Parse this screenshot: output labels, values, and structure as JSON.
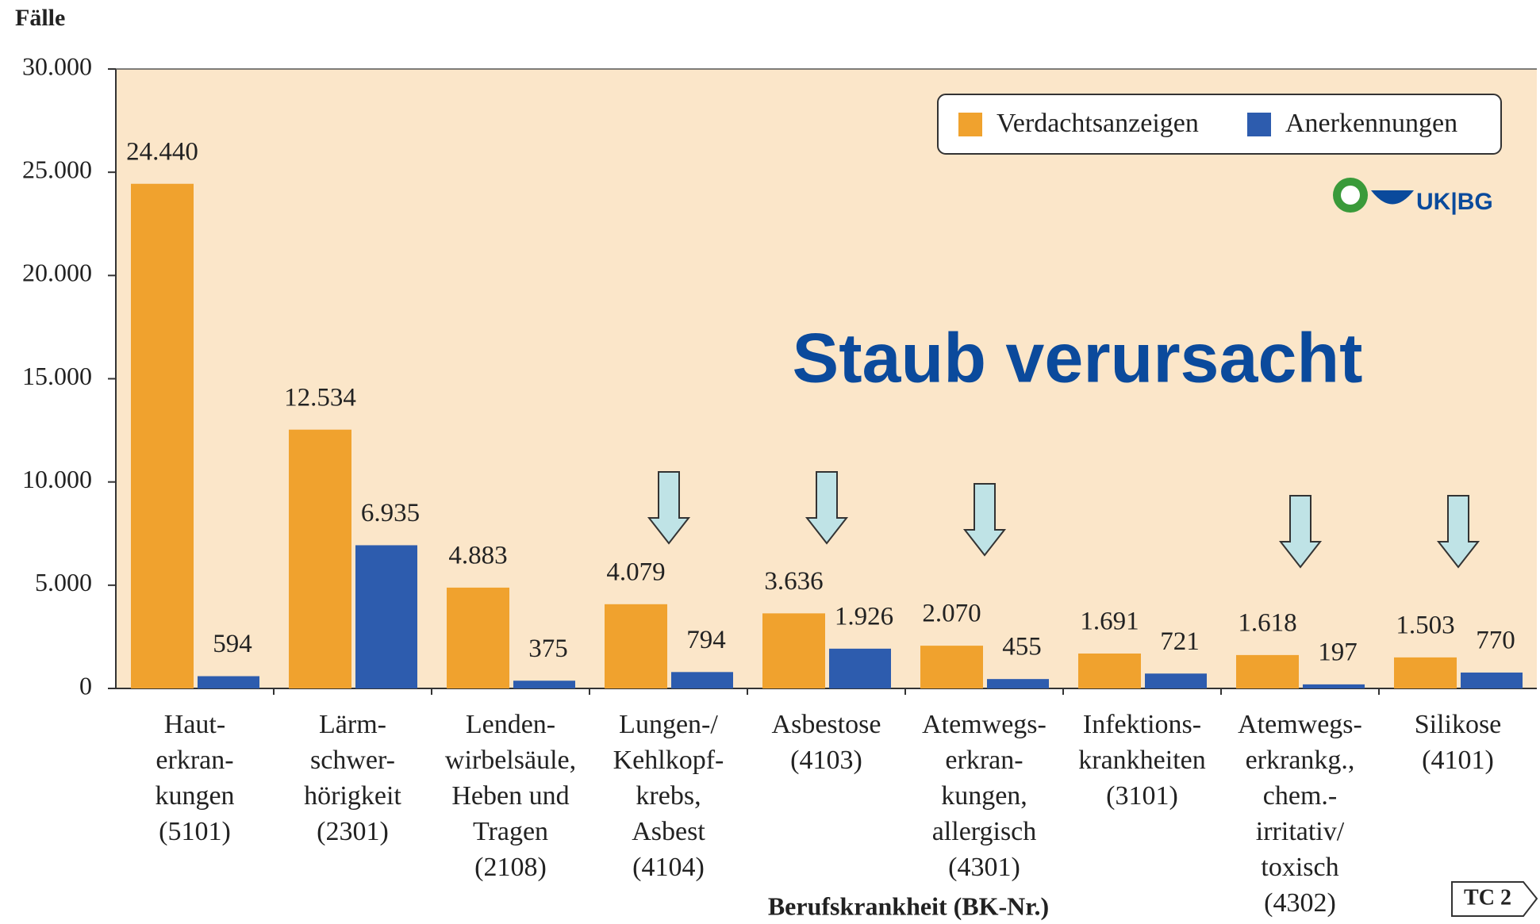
{
  "chart_data": {
    "type": "bar",
    "ylabel": "Fälle",
    "xlabel": "Berufskrankheit (BK-Nr.)",
    "annotation": "Staub verursacht",
    "logo_text": "UK|BG",
    "badge": "TC 2",
    "categories": [
      "Haut-\nerkran-\nkungen\n(5101)",
      "Lärm-\nschwer-\nhörigkeit\n(2301)",
      "Lenden-\nwirbelsäule,\nHeben und\nTragen\n(2108)",
      "Lungen-/\nKehlkopf-\nkrebs,\nAsbest\n(4104)",
      "Asbestose\n(4103)",
      "Atemwegs-\nerkran-\nkungen,\nallergisch\n(4301)",
      "Infektions-\nkrankheiten\n(3101)",
      "Atemwegs-\nerkrankg.,\nchem.-\nirritativ/\ntoxisch\n(4302)",
      "Silikose\n(4101)"
    ],
    "series": [
      {
        "name": "Verdachtsanzeigen",
        "color": "#f0a22e",
        "values": [
          24440,
          12534,
          4883,
          4079,
          3636,
          2070,
          1691,
          1618,
          1503
        ],
        "value_labels": [
          "24.440",
          "12.534",
          "4.883",
          "4.079",
          "3.636",
          "2.070",
          "1.691",
          "1.618",
          "1.503"
        ]
      },
      {
        "name": "Anerkennungen",
        "color": "#2d5cae",
        "values": [
          594,
          6935,
          375,
          794,
          1926,
          455,
          721,
          197,
          770
        ],
        "value_labels": [
          "594",
          "6.935",
          "375",
          "794",
          "1.926",
          "455",
          "721",
          "197",
          "770"
        ]
      }
    ],
    "ylim": [
      0,
      30000
    ],
    "yticks": [
      0,
      {
        "value": 5000,
        "label": "5.000"
      },
      {
        "value": 10000,
        "label": "10.000"
      },
      {
        "value": 15000,
        "label": "15.000"
      },
      {
        "value": 20000,
        "label": "20.000"
      },
      {
        "value": 25000,
        "label": "25.000"
      },
      {
        "value": 30000,
        "label": "30.000"
      }
    ],
    "legend": "top-right",
    "plot_background": "#fbe6c9"
  }
}
